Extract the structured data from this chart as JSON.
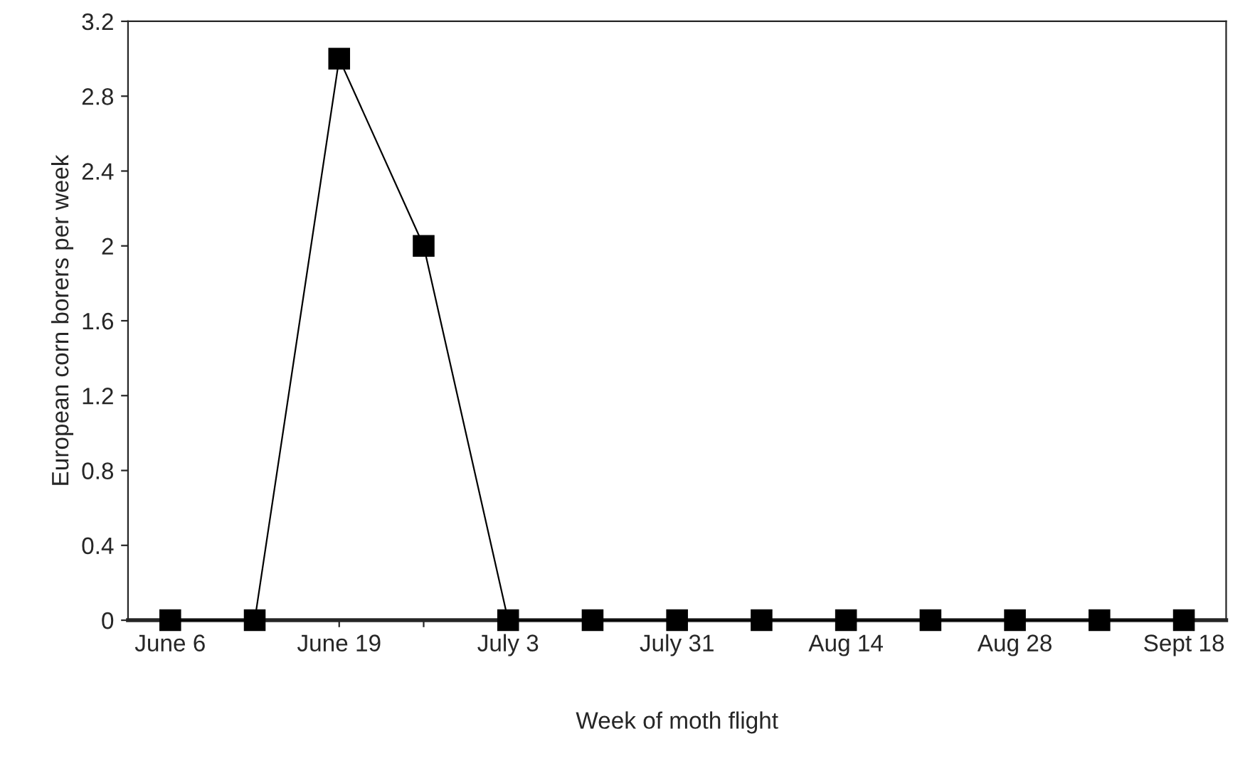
{
  "chart_data": {
    "type": "line",
    "xlabel": "Week of moth flight",
    "ylabel": "European corn borers per week",
    "categories": [
      "June 6",
      null,
      "June 19",
      null,
      "July 3",
      null,
      "July 31",
      null,
      "Aug 14",
      null,
      "Aug 28",
      null,
      "Sept 18"
    ],
    "series": [
      {
        "color": "#000000",
        "values": [
          0,
          0,
          3,
          2,
          0,
          0,
          0,
          0,
          0,
          0,
          0,
          0,
          0
        ]
      }
    ],
    "ylim": [
      0,
      3.2
    ],
    "yticks": [
      0,
      0.4,
      0.8,
      1.2,
      1.6,
      2,
      2.4,
      2.8,
      3.2
    ],
    "grid": false,
    "legend": false,
    "marker": "square",
    "line_style": "solid"
  }
}
